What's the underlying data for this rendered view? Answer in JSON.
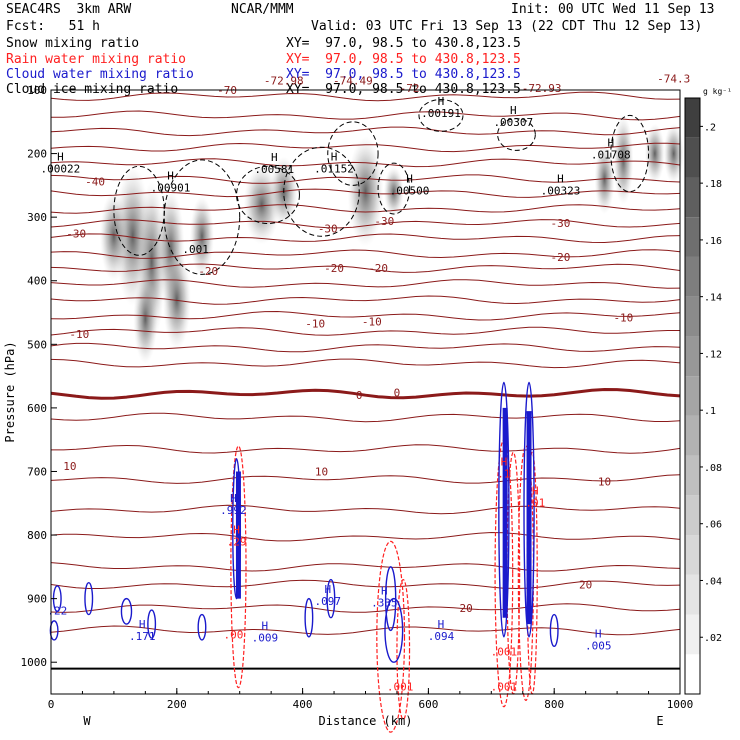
{
  "header": {
    "model": "SEAC4RS  3km ARW",
    "org": "NCAR/MMM",
    "init": "Init: 00 UTC Wed 11 Sep 13",
    "fcst": "Fcst:   51 h",
    "valid": "Valid: 03 UTC Fri 13 Sep 13 (22 CDT Thu 12 Sep 13)"
  },
  "fields": [
    {
      "name": "Snow mixing ratio",
      "xy": "XY=  97.0, 98.5 to 430.8,123.5",
      "color": "#000000"
    },
    {
      "name": "Rain water mixing ratio",
      "xy": "XY=  97.0, 98.5 to 430.8,123.5",
      "color": "#ff2020"
    },
    {
      "name": "Cloud water mixing ratio",
      "xy": "XY=  97.0, 98.5 to 430.8,123.5",
      "color": "#1a1acc"
    },
    {
      "name": "Cloud ice mixing ratio",
      "xy": "XY=  97.0, 98.5 to 430.8,123.5",
      "color": "#000000"
    }
  ],
  "chart_data": {
    "type": "heatmap",
    "xlabel": "Distance (km)",
    "ylabel": "Pressure (hPa)",
    "xlim": [
      0,
      1000
    ],
    "ylim": [
      1050,
      100
    ],
    "x_ticks": [
      0,
      200,
      400,
      600,
      800,
      1000
    ],
    "y_ticks": [
      1000,
      900,
      800,
      700,
      600,
      500,
      400,
      300,
      200,
      100
    ],
    "x_end_labels": {
      "left": "W",
      "right": "E"
    },
    "colorbar": {
      "unit": "g kg⁻¹",
      "ticks": [
        ".02",
        ".04",
        ".06",
        ".08",
        ".1",
        ".12",
        ".14",
        ".16",
        ".18",
        ".2"
      ],
      "colors": [
        "#ffffff",
        "#f0f0f0",
        "#e4e4e4",
        "#d8d8d8",
        "#cccccc",
        "#bfbfbf",
        "#b2b2b2",
        "#a5a5a5",
        "#989898",
        "#8b8b8b",
        "#7e7e7e",
        "#6f6f6f",
        "#5f5f5f",
        "#4f4f4f",
        "#3f3f3f"
      ]
    },
    "temperature_isotherms": {
      "color": "#8b1a1a",
      "labels": [
        {
          "text": "-70",
          "x": 280,
          "p": 100
        },
        {
          "text": "-72.98",
          "x": 370,
          "p": 85
        },
        {
          "text": "-74.49",
          "x": 480,
          "p": 85
        },
        {
          "text": "-72",
          "x": 570,
          "p": 97
        },
        {
          "text": "-72.93",
          "x": 780,
          "p": 97
        },
        {
          "text": "-74.3",
          "x": 990,
          "p": 82
        },
        {
          "text": "-40",
          "x": 70,
          "p": 244
        },
        {
          "text": "-30",
          "x": 40,
          "p": 326
        },
        {
          "text": "-30",
          "x": 440,
          "p": 318
        },
        {
          "text": "-30",
          "x": 530,
          "p": 306
        },
        {
          "text": "-30",
          "x": 810,
          "p": 309
        },
        {
          "text": "-20",
          "x": 250,
          "p": 385
        },
        {
          "text": "-20",
          "x": 450,
          "p": 380
        },
        {
          "text": "-20",
          "x": 520,
          "p": 380
        },
        {
          "text": "-20",
          "x": 810,
          "p": 363
        },
        {
          "text": "-10",
          "x": 45,
          "p": 484
        },
        {
          "text": "-10",
          "x": 420,
          "p": 467
        },
        {
          "text": "-10",
          "x": 510,
          "p": 464
        },
        {
          "text": "-10",
          "x": 910,
          "p": 458
        },
        {
          "text": "0",
          "x": 490,
          "p": 580
        },
        {
          "text": "0",
          "x": 550,
          "p": 576
        },
        {
          "text": "10",
          "x": 30,
          "p": 691
        },
        {
          "text": "10",
          "x": 430,
          "p": 700
        },
        {
          "text": "10",
          "x": 880,
          "p": 716
        },
        {
          "text": "20",
          "x": 660,
          "p": 915
        },
        {
          "text": "20",
          "x": 850,
          "p": 878
        }
      ]
    },
    "maxima_labels": [
      {
        "text": "H",
        "value": ".00022",
        "x": 15,
        "p": 225,
        "color": "#000000"
      },
      {
        "text": "H",
        "value": ".00901",
        "x": 190,
        "p": 255,
        "color": "#000000"
      },
      {
        "text": "H",
        "value": ".00581",
        "x": 355,
        "p": 226,
        "color": "#000000"
      },
      {
        "text": "H",
        "value": ".01152",
        "x": 450,
        "p": 225,
        "color": "#000000"
      },
      {
        "text": "H",
        "value": ".00500",
        "x": 570,
        "p": 260,
        "color": "#000000"
      },
      {
        "text": "H",
        "value": ".00191",
        "x": 620,
        "p": 138,
        "color": "#000000"
      },
      {
        "text": "H",
        "value": ".00307",
        "x": 735,
        "p": 152,
        "color": "#000000"
      },
      {
        "text": "H",
        "value": ".00323",
        "x": 810,
        "p": 260,
        "color": "#000000"
      },
      {
        "text": "H",
        "value": ".01708",
        "x": 890,
        "p": 203,
        "color": "#000000"
      },
      {
        "text": "",
        "value": ".001",
        "x": 230,
        "p": 352,
        "color": "#000000"
      },
      {
        "text": "H",
        "value": ".992",
        "x": 290,
        "p": 762,
        "color": "#1a1acc"
      },
      {
        "text": "H",
        "value": ".29",
        "x": 295,
        "p": 812,
        "color": "#ff2020"
      },
      {
        "text": "H",
        "value": ".171",
        "x": 145,
        "p": 960,
        "color": "#1a1acc"
      },
      {
        "text": "H",
        "value": ".009",
        "x": 340,
        "p": 963,
        "color": "#1a1acc"
      },
      {
        "text": "H",
        "value": ".097",
        "x": 440,
        "p": 905,
        "color": "#1a1acc"
      },
      {
        "text": "H",
        "value": ".335",
        "x": 530,
        "p": 908,
        "color": "#1a1acc"
      },
      {
        "text": "H",
        "value": ".094",
        "x": 620,
        "p": 960,
        "color": "#1a1acc"
      },
      {
        "text": "H",
        "value": ".005",
        "x": 870,
        "p": 975,
        "color": "#1a1acc"
      },
      {
        "text": "",
        "value": ".22",
        "x": 10,
        "p": 920,
        "color": "#1a1acc"
      },
      {
        "text": "H",
        "value": ".1",
        "x": 720,
        "p": 705,
        "color": "#ff2020"
      },
      {
        "text": "H",
        "value": ".01",
        "x": 770,
        "p": 750,
        "color": "#ff2020"
      },
      {
        "text": "",
        "value": ".001",
        "x": 555,
        "p": 1040,
        "color": "#ff2020"
      },
      {
        "text": "",
        "value": ".001",
        "x": 720,
        "p": 1040,
        "color": "#ff2020"
      },
      {
        "text": "",
        "value": ".001",
        "x": 720,
        "p": 985,
        "color": "#ff2020"
      },
      {
        "text": "",
        "value": ".00",
        "x": 290,
        "p": 958,
        "color": "#ff2020"
      }
    ]
  }
}
